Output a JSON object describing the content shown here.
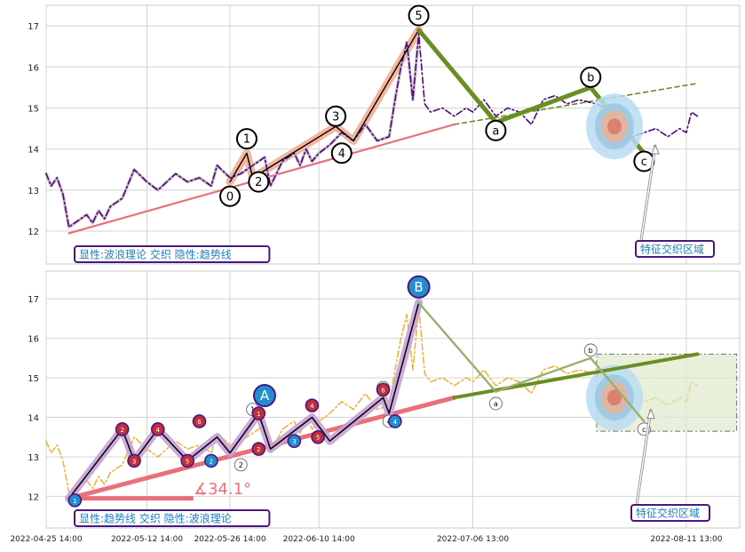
{
  "chart_data": [
    {
      "type": "line",
      "panel": "top",
      "ylim": [
        11.2,
        17.5
      ],
      "yticks": [
        12,
        13,
        14,
        15,
        16,
        17
      ],
      "grid": true,
      "xlim": [
        "2022-04-25 14:00",
        "2022-08-20 13:00"
      ],
      "legend_box": "显性:波浪理论 交织 隐性:趋势线",
      "legend_placement": "bottom-left",
      "annotation": "特征交织区域",
      "colors": {
        "price": "#4b0a7a",
        "trend": "#e8707a",
        "wave_up": "#f4a889",
        "wave_corr": "#6b8e23",
        "label_ring": "#000000"
      },
      "price_series": [
        {
          "x": "2022-04-25 14:00",
          "y": 13.4
        },
        {
          "x": "2022-04-26 10:00",
          "y": 13.1
        },
        {
          "x": "2022-04-27 10:00",
          "y": 13.3
        },
        {
          "x": "2022-04-28 10:00",
          "y": 12.9
        },
        {
          "x": "2022-04-29 10:00",
          "y": 12.1
        },
        {
          "x": "2022-05-02 10:00",
          "y": 12.4
        },
        {
          "x": "2022-05-03 10:00",
          "y": 12.2
        },
        {
          "x": "2022-05-04 10:00",
          "y": 12.5
        },
        {
          "x": "2022-05-05 10:00",
          "y": 12.3
        },
        {
          "x": "2022-05-06 10:00",
          "y": 12.6
        },
        {
          "x": "2022-05-08 10:00",
          "y": 12.8
        },
        {
          "x": "2022-05-10 10:00",
          "y": 13.5
        },
        {
          "x": "2022-05-12 14:00",
          "y": 13.2
        },
        {
          "x": "2022-05-14 10:00",
          "y": 13.0
        },
        {
          "x": "2022-05-17 10:00",
          "y": 13.4
        },
        {
          "x": "2022-05-19 10:00",
          "y": 13.2
        },
        {
          "x": "2022-05-21 10:00",
          "y": 13.3
        },
        {
          "x": "2022-05-23 10:00",
          "y": 13.1
        },
        {
          "x": "2022-05-24 10:00",
          "y": 13.6
        },
        {
          "x": "2022-05-26 14:00",
          "y": 13.3
        },
        {
          "x": "2022-05-28 10:00",
          "y": 13.4
        },
        {
          "x": "2022-05-30 10:00",
          "y": 13.6
        },
        {
          "x": "2022-06-01 10:00",
          "y": 13.8
        },
        {
          "x": "2022-06-02 10:00",
          "y": 13.1
        },
        {
          "x": "2022-06-04 10:00",
          "y": 13.7
        },
        {
          "x": "2022-06-06 10:00",
          "y": 13.9
        },
        {
          "x": "2022-06-07 10:00",
          "y": 13.6
        },
        {
          "x": "2022-06-08 10:00",
          "y": 14.0
        },
        {
          "x": "2022-06-09 10:00",
          "y": 13.7
        },
        {
          "x": "2022-06-10 14:00",
          "y": 13.9
        },
        {
          "x": "2022-06-12 10:00",
          "y": 14.1
        },
        {
          "x": "2022-06-14 10:00",
          "y": 14.4
        },
        {
          "x": "2022-06-16 10:00",
          "y": 14.2
        },
        {
          "x": "2022-06-18 10:00",
          "y": 14.6
        },
        {
          "x": "2022-06-20 10:00",
          "y": 14.2
        },
        {
          "x": "2022-06-22 10:00",
          "y": 14.3
        },
        {
          "x": "2022-06-23 10:00",
          "y": 15.2
        },
        {
          "x": "2022-06-24 10:00",
          "y": 16.0
        },
        {
          "x": "2022-06-25 10:00",
          "y": 16.6
        },
        {
          "x": "2022-06-26 10:00",
          "y": 15.2
        },
        {
          "x": "2022-06-27 10:00",
          "y": 16.8
        },
        {
          "x": "2022-06-28 10:00",
          "y": 15.1
        },
        {
          "x": "2022-06-29 10:00",
          "y": 14.9
        },
        {
          "x": "2022-07-01 10:00",
          "y": 15.0
        },
        {
          "x": "2022-07-03 10:00",
          "y": 14.8
        },
        {
          "x": "2022-07-05 10:00",
          "y": 15.0
        },
        {
          "x": "2022-07-06 13:00",
          "y": 14.9
        },
        {
          "x": "2022-07-08 10:00",
          "y": 15.2
        },
        {
          "x": "2022-07-10 10:00",
          "y": 14.8
        },
        {
          "x": "2022-07-12 10:00",
          "y": 15.0
        },
        {
          "x": "2022-07-14 10:00",
          "y": 14.9
        },
        {
          "x": "2022-07-16 10:00",
          "y": 14.6
        },
        {
          "x": "2022-07-18 10:00",
          "y": 15.2
        },
        {
          "x": "2022-07-20 10:00",
          "y": 15.3
        },
        {
          "x": "2022-07-22 10:00",
          "y": 15.1
        },
        {
          "x": "2022-07-24 10:00",
          "y": 15.2
        },
        {
          "x": "2022-07-27 10:00",
          "y": 15.1
        },
        {
          "x": "2022-07-30 10:00",
          "y": 14.9
        },
        {
          "x": "2022-08-02 10:00",
          "y": 14.3
        },
        {
          "x": "2022-08-04 10:00",
          "y": 14.4
        },
        {
          "x": "2022-08-06 10:00",
          "y": 14.5
        },
        {
          "x": "2022-08-08 10:00",
          "y": 14.3
        },
        {
          "x": "2022-08-10 10:00",
          "y": 14.5
        },
        {
          "x": "2022-08-11 13:00",
          "y": 14.4
        },
        {
          "x": "2022-08-12 10:00",
          "y": 14.9
        },
        {
          "x": "2022-08-13 10:00",
          "y": 14.8
        }
      ],
      "trendline": [
        {
          "x": "2022-04-29 10:00",
          "y": 11.95
        },
        {
          "x": "2022-07-03 10:00",
          "y": 14.6
        }
      ],
      "trend_ext": [
        {
          "x": "2022-07-03 10:00",
          "y": 14.6
        },
        {
          "x": "2022-08-13 10:00",
          "y": 15.6
        }
      ],
      "wave_up": [
        {
          "x": "2022-05-26 14:00",
          "y": 13.2
        },
        {
          "x": "2022-05-29 10:00",
          "y": 13.9
        },
        {
          "x": "2022-05-30 10:00",
          "y": 13.3
        },
        {
          "x": "2022-06-13 10:00",
          "y": 14.55
        },
        {
          "x": "2022-06-16 10:00",
          "y": 14.2
        },
        {
          "x": "2022-06-27 10:00",
          "y": 16.9
        }
      ],
      "wave_corr": [
        {
          "x": "2022-06-27 10:00",
          "y": 16.9
        },
        {
          "x": "2022-07-10 10:00",
          "y": 14.65
        },
        {
          "x": "2022-07-26 10:00",
          "y": 15.5
        },
        {
          "x": "2022-08-04 10:00",
          "y": 13.9
        }
      ],
      "wave_labels": [
        {
          "label": "0",
          "x": "2022-05-26 14:00",
          "y": 12.85
        },
        {
          "label": "1",
          "x": "2022-05-29 10:00",
          "y": 14.25
        },
        {
          "label": "2",
          "x": "2022-05-31 10:00",
          "y": 13.2
        },
        {
          "label": "3",
          "x": "2022-06-13 10:00",
          "y": 14.8
        },
        {
          "label": "4",
          "x": "2022-06-14 10:00",
          "y": 13.9
        },
        {
          "label": "5",
          "x": "2022-06-27 10:00",
          "y": 17.25
        },
        {
          "label": "a",
          "x": "2022-07-10 10:00",
          "y": 14.45
        },
        {
          "label": "b",
          "x": "2022-07-26 10:00",
          "y": 15.75
        },
        {
          "label": "c",
          "x": "2022-08-04 10:00",
          "y": 13.7
        }
      ]
    },
    {
      "type": "line",
      "panel": "bottom",
      "ylim": [
        11.2,
        17.7
      ],
      "yticks": [
        12,
        13,
        14,
        15,
        16,
        17
      ],
      "grid": true,
      "xlim": [
        "2022-04-25 14:00",
        "2022-08-20 13:00"
      ],
      "xticks": [
        "2022-04-25 14:00",
        "2022-05-12 14:00",
        "2022-05-26 14:00",
        "2022-06-10 14:00",
        "2022-07-06 13:00",
        "2022-08-11 13:00"
      ],
      "legend_box": "显性:趋势线 交织 隐性:波浪理论",
      "legend_placement": "bottom-left",
      "annotation": "特征交织区域",
      "angle_label": "∡34.1°",
      "colors": {
        "price": "#f0b030",
        "trend": "#e8707a",
        "trend_ext": "#6b8e23",
        "wave": "#c8a0d8",
        "major_label": "#1f8fd0",
        "up_marker": "#c0303a",
        "down_marker": "#1f8fd0"
      },
      "trendline": [
        {
          "x": "2022-04-29 10:00",
          "y": 11.95
        },
        {
          "x": "2022-07-03 10:00",
          "y": 14.5
        }
      ],
      "trend_ext": [
        {
          "x": "2022-07-03 10:00",
          "y": 14.5
        },
        {
          "x": "2022-08-13 10:00",
          "y": 15.6
        }
      ],
      "wave_path": [
        {
          "x": "2022-04-29 10:00",
          "y": 11.95
        },
        {
          "x": "2022-05-08 10:00",
          "y": 13.7
        },
        {
          "x": "2022-05-10 10:00",
          "y": 12.9
        },
        {
          "x": "2022-05-14 10:00",
          "y": 13.7
        },
        {
          "x": "2022-05-19 10:00",
          "y": 12.9
        },
        {
          "x": "2022-05-24 10:00",
          "y": 13.5
        },
        {
          "x": "2022-05-26 14:00",
          "y": 13.1
        },
        {
          "x": "2022-05-31 10:00",
          "y": 14.1
        },
        {
          "x": "2022-06-02 10:00",
          "y": 13.2
        },
        {
          "x": "2022-06-09 10:00",
          "y": 14.0
        },
        {
          "x": "2022-06-12 10:00",
          "y": 13.4
        },
        {
          "x": "2022-06-21 10:00",
          "y": 14.5
        },
        {
          "x": "2022-06-22 10:00",
          "y": 14.1
        },
        {
          "x": "2022-06-27 10:00",
          "y": 16.9
        }
      ],
      "wave_corr": [
        {
          "x": "2022-06-27 10:00",
          "y": 16.9
        },
        {
          "x": "2022-07-10 10:00",
          "y": 14.65
        },
        {
          "x": "2022-07-26 10:00",
          "y": 15.5
        },
        {
          "x": "2022-08-04 10:00",
          "y": 13.9
        }
      ],
      "major_labels": [
        {
          "label": "A",
          "x": "2022-06-01 10:00",
          "y": 14.55
        },
        {
          "label": "B",
          "x": "2022-06-27 10:00",
          "y": 17.3
        }
      ],
      "minor_labels_white": [
        {
          "label": "1",
          "x": "2022-05-30 10:00",
          "y": 14.2
        },
        {
          "label": "2",
          "x": "2022-05-28 10:00",
          "y": 12.8
        },
        {
          "label": "3",
          "x": "2022-06-21 10:00",
          "y": 14.75
        },
        {
          "label": "4",
          "x": "2022-06-22 10:00",
          "y": 13.9
        },
        {
          "label": "a",
          "x": "2022-07-10 10:00",
          "y": 14.35
        },
        {
          "label": "b",
          "x": "2022-07-26 10:00",
          "y": 15.7
        },
        {
          "label": "c",
          "x": "2022-08-04 10:00",
          "y": 13.7
        }
      ],
      "colored_markers": [
        {
          "label": "1",
          "kind": "down",
          "x": "2022-04-30 10:00",
          "y": 11.9
        },
        {
          "label": "2",
          "kind": "up",
          "x": "2022-05-08 10:00",
          "y": 13.7
        },
        {
          "label": "3",
          "kind": "up",
          "x": "2022-05-10 10:00",
          "y": 12.9
        },
        {
          "label": "4",
          "kind": "up",
          "x": "2022-05-14 10:00",
          "y": 13.7
        },
        {
          "label": "5",
          "kind": "up",
          "x": "2022-05-19 10:00",
          "y": 12.9
        },
        {
          "label": "6",
          "kind": "up",
          "x": "2022-05-21 10:00",
          "y": 13.9
        },
        {
          "label": "2",
          "kind": "down",
          "x": "2022-05-23 10:00",
          "y": 12.9
        },
        {
          "label": "1",
          "kind": "up",
          "x": "2022-05-31 10:00",
          "y": 14.1
        },
        {
          "label": "2",
          "kind": "up",
          "x": "2022-05-31 10:00",
          "y": 13.2
        },
        {
          "label": "3",
          "kind": "down",
          "x": "2022-06-06 10:00",
          "y": 13.4
        },
        {
          "label": "4",
          "kind": "up",
          "x": "2022-06-09 10:00",
          "y": 14.3
        },
        {
          "label": "5",
          "kind": "up",
          "x": "2022-06-10 10:00",
          "y": 13.5
        },
        {
          "label": "6",
          "kind": "up",
          "x": "2022-06-21 10:00",
          "y": 14.7
        },
        {
          "label": "4",
          "kind": "down",
          "x": "2022-06-23 10:00",
          "y": 13.9
        }
      ]
    }
  ]
}
